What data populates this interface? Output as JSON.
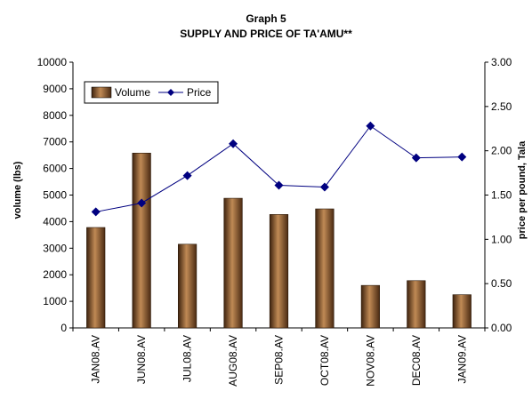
{
  "chart_data": {
    "type": "bar",
    "title": "Graph 5",
    "subtitle": "SUPPLY AND PRICE OF TA'AMU**",
    "xlabel": "",
    "ylabel": "volume (lbs)",
    "y2label": "price per pound, Tala",
    "categories": [
      "JAN08.AV",
      "JUN08.AV",
      "JUL08.AV",
      "AUG08.AV",
      "SEP08.AV",
      "OCT08.AV",
      "NOV08.AV",
      "DEC08.AV",
      "JAN09.AV"
    ],
    "ylim": [
      0,
      10000
    ],
    "y2lim": [
      0,
      3.0
    ],
    "yticks": [
      "0",
      "1000",
      "2000",
      "3000",
      "4000",
      "5000",
      "6000",
      "7000",
      "8000",
      "9000",
      "10000"
    ],
    "y2ticks": [
      "0.00",
      "0.50",
      "1.00",
      "1.50",
      "2.00",
      "2.50",
      "3.00"
    ],
    "legend_position": "top-left",
    "series": [
      {
        "name": "Volume",
        "kind": "bar",
        "axis": "left",
        "color": "#8B5A2B",
        "values": [
          3780,
          6580,
          3150,
          4880,
          4270,
          4480,
          1600,
          1780,
          1250
        ]
      },
      {
        "name": "Price",
        "kind": "line",
        "axis": "right",
        "color": "#000080",
        "values": [
          1.31,
          1.41,
          1.72,
          2.08,
          1.61,
          1.59,
          2.28,
          1.92,
          1.93
        ]
      }
    ]
  }
}
